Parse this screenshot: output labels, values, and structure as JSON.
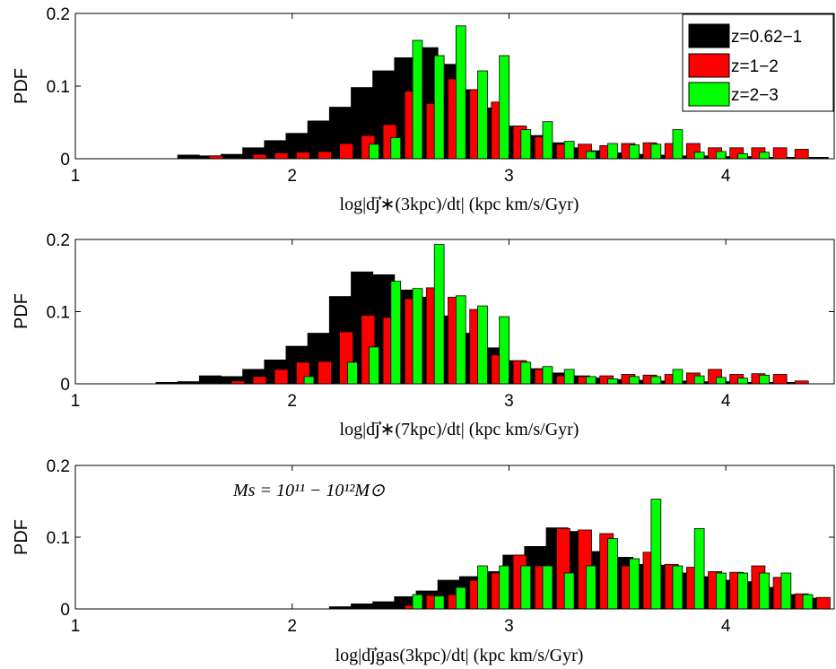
{
  "colors": {
    "z062_1": "#000000",
    "z1_2": "#ff0000",
    "z2_3": "#00ff00",
    "edge": "#000000"
  },
  "legend": {
    "placement": "top-right",
    "entries": [
      "z=0.62−1",
      "z=1−2",
      "z=2−3"
    ]
  },
  "panels": [
    {
      "xlabel": "log|dj⃗∗(3kpc)/dt| (kpc km/s/Gyr)",
      "annotation": ""
    },
    {
      "xlabel": "log|dj⃗∗(7kpc)/dt| (kpc km/s/Gyr)",
      "annotation": ""
    },
    {
      "xlabel": "log|dj⃗gas(3kpc)/dt| (kpc km/s/Gyr)",
      "annotation": "Ms = 10¹¹ − 10¹²M⊙"
    }
  ],
  "chart_data": [
    {
      "type": "bar",
      "title": "",
      "ylabel": "PDF",
      "xlabel": "log|dj⃗∗(3kpc)/dt| (kpc km/s/Gyr)",
      "xlim": [
        1,
        4.5
      ],
      "ylim": [
        0,
        0.2
      ],
      "xticks": [
        1,
        2,
        3,
        4
      ],
      "yticks": [
        0,
        0.1,
        0.2
      ],
      "grid": false,
      "legend_placement": "top-right",
      "series": [
        {
          "name": "z=0.62−1",
          "bin_width": 0.1,
          "x": [
            1.55,
            1.65,
            1.75,
            1.85,
            1.95,
            2.05,
            2.15,
            2.25,
            2.35,
            2.45,
            2.55,
            2.65,
            2.75,
            2.85,
            2.95,
            3.05,
            3.15,
            3.25,
            3.35,
            3.45,
            3.55,
            3.65,
            3.75,
            3.85,
            3.95,
            4.05,
            4.15,
            4.25,
            4.35,
            4.45
          ],
          "y": [
            0.005,
            0.004,
            0.006,
            0.015,
            0.025,
            0.035,
            0.052,
            0.071,
            0.098,
            0.121,
            0.139,
            0.153,
            0.13,
            0.095,
            0.07,
            0.045,
            0.032,
            0.022,
            0.015,
            0.011,
            0.008,
            0.006,
            0.005,
            0.004,
            0.004,
            0.003,
            0.003,
            0.002,
            0.002,
            0.002
          ]
        },
        {
          "name": "z=1−2",
          "bin_width": 0.1,
          "x": [
            1.65,
            1.85,
            1.95,
            2.05,
            2.15,
            2.25,
            2.35,
            2.45,
            2.55,
            2.65,
            2.75,
            2.85,
            2.95,
            3.05,
            3.15,
            3.25,
            3.35,
            3.45,
            3.55,
            3.65,
            3.75,
            3.85,
            3.95,
            4.05,
            4.15,
            4.25,
            4.35
          ],
          "y": [
            0.004,
            0.006,
            0.008,
            0.009,
            0.01,
            0.021,
            0.032,
            0.047,
            0.093,
            0.076,
            0.11,
            0.095,
            0.078,
            0.045,
            0.03,
            0.02,
            0.02,
            0.018,
            0.021,
            0.022,
            0.021,
            0.021,
            0.015,
            0.015,
            0.015,
            0.015,
            0.013
          ]
        },
        {
          "name": "z=2−3",
          "bin_width": 0.1,
          "x": [
            2.35,
            2.45,
            2.55,
            2.65,
            2.75,
            2.85,
            2.95,
            3.05,
            3.15,
            3.25,
            3.35,
            3.45,
            3.55,
            3.65,
            3.75,
            3.85,
            3.95,
            4.05,
            4.15
          ],
          "y": [
            0.02,
            0.029,
            0.163,
            0.142,
            0.183,
            0.121,
            0.142,
            0.04,
            0.051,
            0.024,
            0.01,
            0.021,
            0.019,
            0.02,
            0.04,
            0.009,
            0.01,
            0.007,
            0.009
          ]
        }
      ]
    },
    {
      "type": "bar",
      "title": "",
      "ylabel": "PDF",
      "xlabel": "log|dj⃗∗(7kpc)/dt| (kpc km/s/Gyr)",
      "xlim": [
        1,
        4.5
      ],
      "ylim": [
        0,
        0.2
      ],
      "xticks": [
        1,
        2,
        3,
        4
      ],
      "yticks": [
        0,
        0.1,
        0.2
      ],
      "grid": false,
      "series": [
        {
          "name": "z=0.62−1",
          "bin_width": 0.1,
          "x": [
            1.45,
            1.55,
            1.65,
            1.75,
            1.85,
            1.95,
            2.05,
            2.15,
            2.25,
            2.35,
            2.45,
            2.55,
            2.65,
            2.75,
            2.85,
            2.95,
            3.05,
            3.15,
            3.25,
            3.35,
            3.45,
            3.55,
            3.65,
            3.75,
            3.85,
            3.95,
            4.05,
            4.15,
            4.25,
            4.35
          ],
          "y": [
            0.002,
            0.003,
            0.011,
            0.01,
            0.02,
            0.033,
            0.052,
            0.07,
            0.121,
            0.155,
            0.151,
            0.13,
            0.12,
            0.094,
            0.07,
            0.05,
            0.032,
            0.021,
            0.015,
            0.011,
            0.008,
            0.006,
            0.005,
            0.004,
            0.004,
            0.003,
            0.003,
            0.002,
            0.002,
            0.002
          ]
        },
        {
          "name": "z=1−2",
          "bin_width": 0.1,
          "x": [
            1.75,
            1.85,
            1.95,
            2.05,
            2.15,
            2.25,
            2.35,
            2.45,
            2.55,
            2.65,
            2.75,
            2.85,
            2.95,
            3.05,
            3.15,
            3.25,
            3.35,
            3.45,
            3.55,
            3.65,
            3.75,
            3.85,
            3.95,
            4.05,
            4.15,
            4.25,
            4.35
          ],
          "y": [
            0.004,
            0.01,
            0.02,
            0.03,
            0.031,
            0.072,
            0.095,
            0.092,
            0.118,
            0.133,
            0.12,
            0.103,
            0.04,
            0.032,
            0.02,
            0.011,
            0.01,
            0.011,
            0.013,
            0.012,
            0.013,
            0.015,
            0.02,
            0.013,
            0.014,
            0.013,
            0.004
          ]
        },
        {
          "name": "z=2−3",
          "bin_width": 0.1,
          "x": [
            2.05,
            2.25,
            2.35,
            2.45,
            2.55,
            2.65,
            2.75,
            2.85,
            2.95,
            3.05,
            3.15,
            3.25,
            3.35,
            3.45,
            3.55,
            3.65,
            3.75,
            3.85,
            3.95,
            4.05,
            4.15
          ],
          "y": [
            0.01,
            0.03,
            0.051,
            0.142,
            0.132,
            0.193,
            0.122,
            0.108,
            0.093,
            0.03,
            0.024,
            0.02,
            0.01,
            0.007,
            0.01,
            0.01,
            0.02,
            0.011,
            0.009,
            0.008,
            0.012
          ]
        }
      ]
    },
    {
      "type": "bar",
      "title": "",
      "ylabel": "PDF",
      "xlabel": "log|dj⃗gas(3kpc)/dt| (kpc km/s/Gyr)",
      "xlim": [
        1,
        4.5
      ],
      "ylim": [
        0,
        0.2
      ],
      "xticks": [
        1,
        2,
        3,
        4
      ],
      "yticks": [
        0,
        0.1,
        0.2
      ],
      "grid": false,
      "annotations": [
        "Ms = 10¹¹ − 10¹²M⊙"
      ],
      "series": [
        {
          "name": "z=0.62−1",
          "bin_width": 0.1,
          "x": [
            2.25,
            2.35,
            2.45,
            2.55,
            2.65,
            2.75,
            2.85,
            2.95,
            3.05,
            3.15,
            3.25,
            3.35,
            3.45,
            3.55,
            3.65,
            3.75,
            3.85,
            3.95,
            4.05,
            4.15,
            4.25,
            4.35,
            4.45
          ],
          "y": [
            0.003,
            0.007,
            0.01,
            0.017,
            0.025,
            0.04,
            0.045,
            0.052,
            0.075,
            0.087,
            0.113,
            0.108,
            0.08,
            0.072,
            0.062,
            0.061,
            0.05,
            0.045,
            0.04,
            0.038,
            0.03,
            0.02,
            0.015
          ]
        },
        {
          "name": "z=1−2",
          "bin_width": 0.1,
          "x": [
            2.55,
            2.65,
            2.75,
            2.85,
            2.95,
            3.05,
            3.15,
            3.25,
            3.35,
            3.45,
            3.55,
            3.65,
            3.75,
            3.85,
            3.95,
            4.05,
            4.15,
            4.25,
            4.35,
            4.45
          ],
          "y": [
            0.005,
            0.019,
            0.02,
            0.04,
            0.05,
            0.075,
            0.06,
            0.112,
            0.11,
            0.105,
            0.06,
            0.079,
            0.062,
            0.058,
            0.052,
            0.051,
            0.06,
            0.044,
            0.021,
            0.016
          ]
        },
        {
          "name": "z=2−3",
          "bin_width": 0.1,
          "x": [
            2.55,
            2.65,
            2.75,
            2.85,
            2.95,
            3.05,
            3.15,
            3.25,
            3.35,
            3.45,
            3.55,
            3.65,
            3.75,
            3.85,
            3.95,
            4.05,
            4.15,
            4.25,
            4.35
          ],
          "y": [
            0.02,
            0.018,
            0.03,
            0.06,
            0.06,
            0.06,
            0.06,
            0.05,
            0.06,
            0.098,
            0.07,
            0.153,
            0.06,
            0.112,
            0.05,
            0.05,
            0.05,
            0.05,
            0.02
          ]
        }
      ]
    }
  ]
}
